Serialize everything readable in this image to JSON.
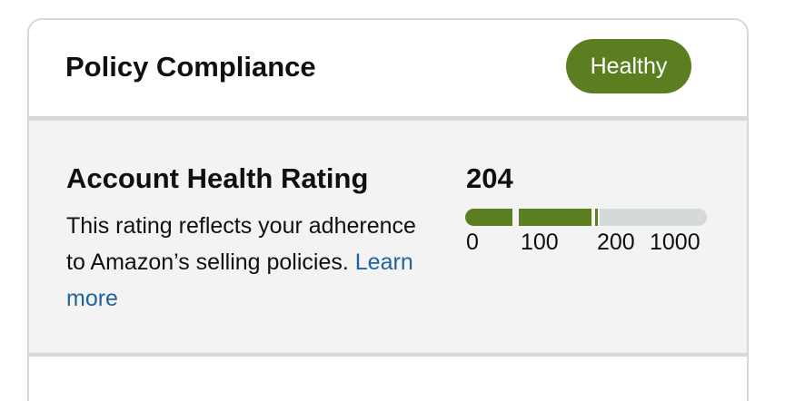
{
  "header": {
    "title": "Policy Compliance",
    "status": "Healthy"
  },
  "rating": {
    "title": "Account Health Rating",
    "description": "This rating reflects your adherence to Amazon’s selling policies.",
    "link": "Learn more",
    "score": 204,
    "scale": [
      0,
      100,
      200,
      1000
    ]
  }
}
